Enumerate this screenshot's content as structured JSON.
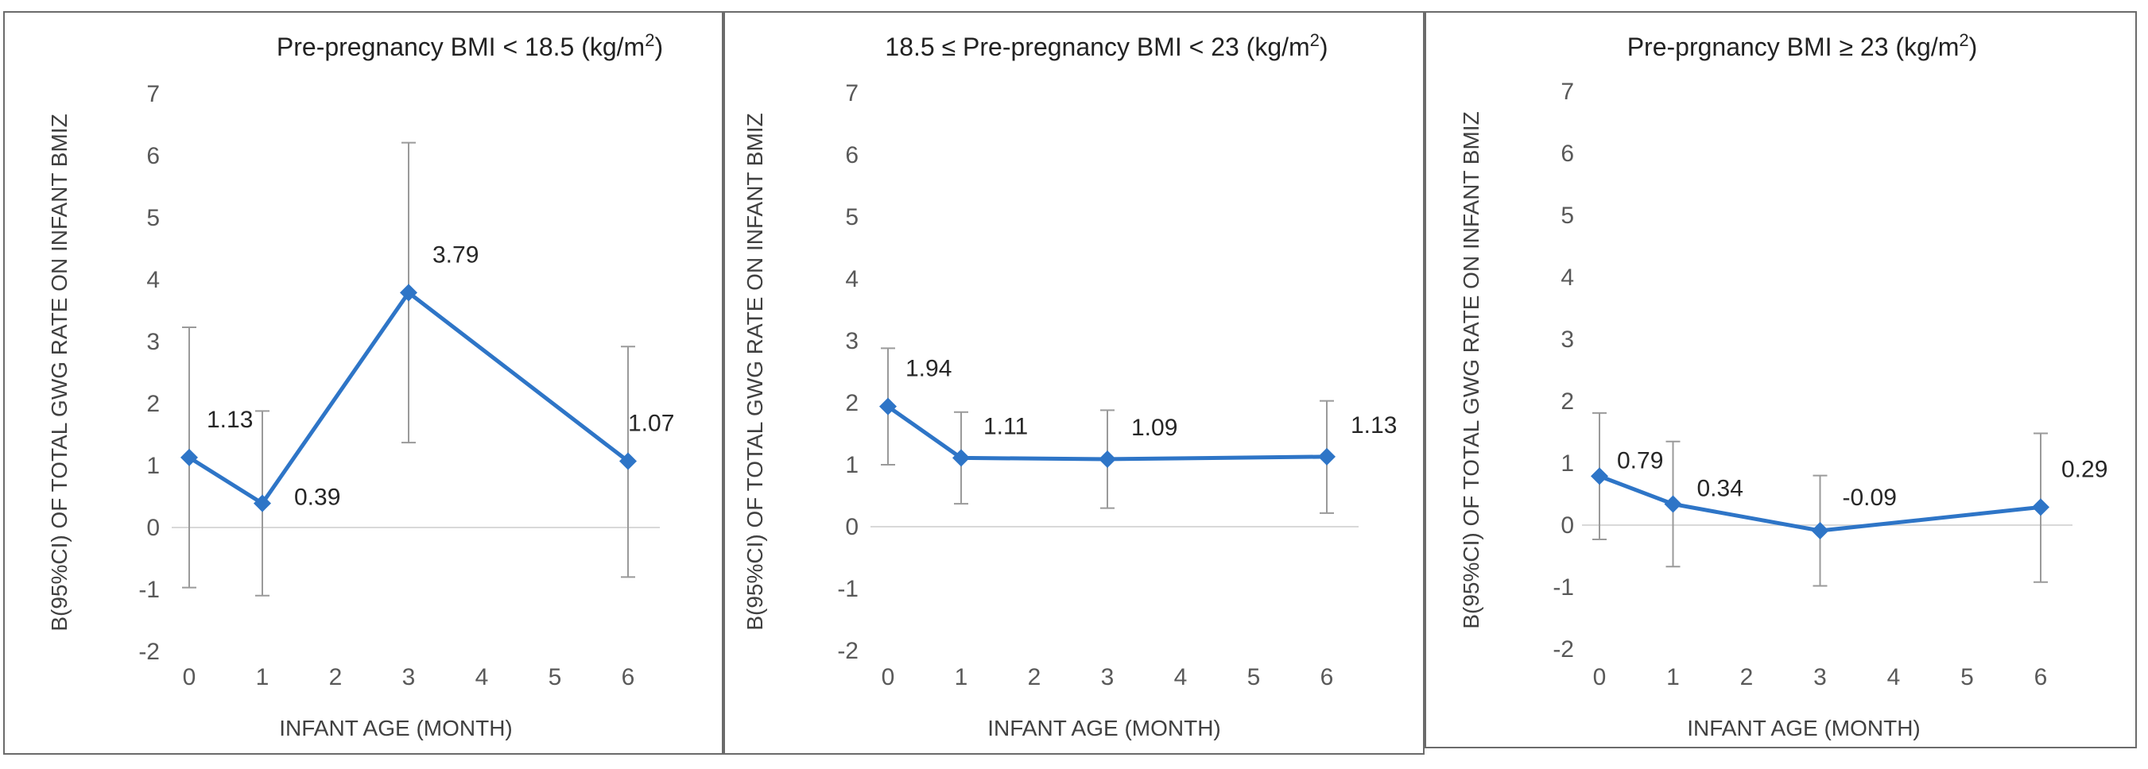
{
  "chart_data": [
    {
      "type": "line",
      "title_main": "Pre-pregnancy BMI < 18.5 (kg/m",
      "title_sup": "2",
      "title_end": ")",
      "xlabel": "INFANT AGE (MONTH)",
      "ylabel": "B(95%CI) OF TOTAL GWG RATE ON INFANT BMIZ",
      "x_ticks": [
        "0",
        "1",
        "2",
        "3",
        "4",
        "5",
        "6"
      ],
      "y_ticks": [
        "7",
        "6",
        "5",
        "4",
        "3",
        "2",
        "1",
        "0",
        "-1",
        "-2"
      ],
      "xlim": [
        0,
        6
      ],
      "ylim": [
        -2,
        7
      ],
      "x": [
        0,
        1,
        3,
        6
      ],
      "y": [
        1.13,
        0.39,
        3.79,
        1.07
      ],
      "ci_low": [
        -0.97,
        -1.1,
        1.37,
        -0.8
      ],
      "ci_high": [
        3.23,
        1.88,
        6.21,
        2.92
      ],
      "labels": [
        "1.13",
        "0.39",
        "3.79",
        "1.07"
      ],
      "color": "#2e75c7"
    },
    {
      "type": "line",
      "title_main": "18.5 ≤ Pre-pregnancy BMI < 23 (kg/m",
      "title_sup": "2",
      "title_end": ")",
      "xlabel": "INFANT AGE (MONTH)",
      "ylabel": "B(95%CI) OF TOTAL GWG RATE ON INFANT BMIZ",
      "x_ticks": [
        "0",
        "1",
        "2",
        "3",
        "4",
        "5",
        "6"
      ],
      "y_ticks": [
        "7",
        "6",
        "5",
        "4",
        "3",
        "2",
        "1",
        "0",
        "-1",
        "-2"
      ],
      "xlim": [
        0,
        6
      ],
      "ylim": [
        -2,
        7
      ],
      "x": [
        0,
        1,
        3,
        6
      ],
      "y": [
        1.94,
        1.11,
        1.09,
        1.13
      ],
      "ci_low": [
        1.0,
        0.37,
        0.3,
        0.22
      ],
      "ci_high": [
        2.88,
        1.85,
        1.88,
        2.03
      ],
      "labels": [
        "1.94",
        "1.11",
        "1.09",
        "1.13"
      ],
      "color": "#2e75c7"
    },
    {
      "type": "line",
      "title_main": "Pre-prgnancy BMI ≥ 23 (kg/m",
      "title_sup": "2",
      "title_end": ")",
      "xlabel": "INFANT AGE (MONTH)",
      "ylabel": "B(95%CI) OF TOTAL GWG RATE ON INFANT BMIZ",
      "x_ticks": [
        "0",
        "1",
        "2",
        "3",
        "4",
        "5",
        "6"
      ],
      "y_ticks": [
        "7",
        "6",
        "5",
        "4",
        "3",
        "2",
        "1",
        "0",
        "-1",
        "-2"
      ],
      "xlim": [
        0,
        6
      ],
      "ylim": [
        -2,
        7
      ],
      "x": [
        0,
        1,
        3,
        6
      ],
      "y": [
        0.79,
        0.34,
        -0.09,
        0.29
      ],
      "ci_low": [
        -0.23,
        -0.67,
        -0.98,
        -0.92
      ],
      "ci_high": [
        1.81,
        1.35,
        0.8,
        1.48
      ],
      "labels": [
        "0.79",
        "0.34",
        "-0.09",
        "0.29"
      ],
      "color": "#2e75c7"
    }
  ]
}
